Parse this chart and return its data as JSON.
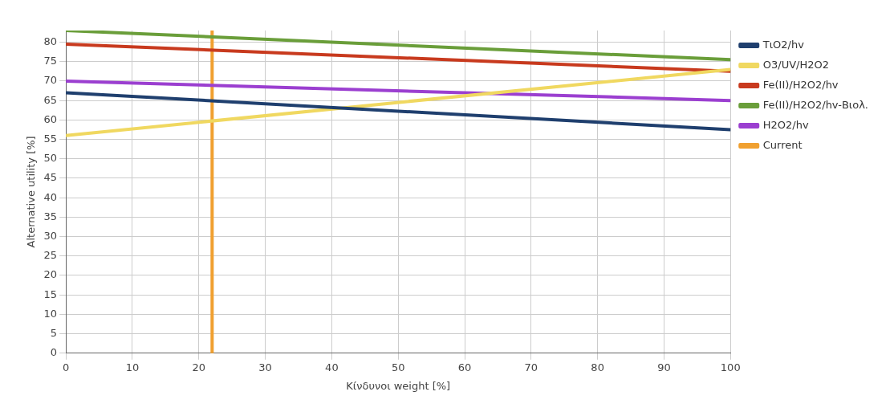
{
  "chart_data": {
    "type": "line",
    "xlabel": "Κίνδυνοι weight [%]",
    "ylabel": "Alternative utility [%]",
    "x": [
      0,
      100
    ],
    "series": [
      {
        "name": "TιO2/hv",
        "color": "#1f3f6e",
        "values": [
          67,
          57.5
        ]
      },
      {
        "name": "O3/UV/H2O2",
        "color": "#f0d860",
        "values": [
          56,
          73
        ]
      },
      {
        "name": "Fe(II)/H2O2/hv",
        "color": "#c83a1e",
        "values": [
          79.5,
          72.5
        ]
      },
      {
        "name": "Fe(II)/H2O2/hv-Βιολ.",
        "color": "#6a9e3a",
        "values": [
          83,
          75.5
        ]
      },
      {
        "name": "H2O2/hv",
        "color": "#9b3fd0",
        "values": [
          70,
          65
        ]
      },
      {
        "name": "Current",
        "color": "#f0a030",
        "x": [
          22,
          22
        ],
        "values": [
          0,
          83
        ]
      }
    ],
    "xlim": [
      0,
      100
    ],
    "xticks": [
      0,
      10,
      20,
      30,
      40,
      50,
      60,
      70,
      80,
      90,
      100
    ],
    "ylim": [
      0,
      83
    ],
    "yticks": [
      0,
      5,
      10,
      15,
      20,
      25,
      30,
      35,
      40,
      45,
      50,
      55,
      60,
      65,
      70,
      75,
      80
    ],
    "grid": true,
    "legend": "top right",
    "marker": "none",
    "line_style": "solid"
  }
}
